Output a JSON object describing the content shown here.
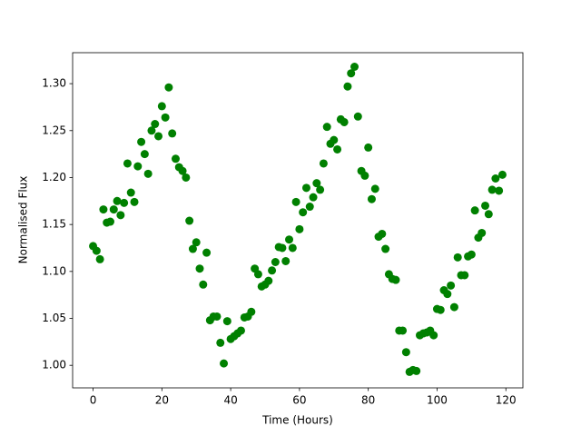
{
  "chart_data": {
    "type": "scatter",
    "x_label": "Time (Hours)",
    "y_label": "Normalised Flux",
    "color": "#008000",
    "x": [
      0,
      1,
      2,
      3,
      4,
      5,
      6,
      7,
      8,
      9,
      10,
      11,
      12,
      13,
      14,
      15,
      16,
      17,
      18,
      19,
      20,
      21,
      22,
      23,
      24,
      25,
      26,
      27,
      28,
      29,
      30,
      31,
      32,
      33,
      34,
      35,
      36,
      37,
      38,
      39,
      40,
      41,
      42,
      43,
      44,
      45,
      46,
      47,
      48,
      49,
      50,
      51,
      52,
      53,
      54,
      55,
      56,
      57,
      58,
      59,
      60,
      61,
      62,
      63,
      64,
      65,
      66,
      67,
      68,
      69,
      70,
      71,
      72,
      73,
      74,
      75,
      76,
      77,
      78,
      79,
      80,
      81,
      82,
      83,
      84,
      85,
      86,
      87,
      88,
      89,
      90,
      91,
      92,
      93,
      94,
      95,
      96,
      97,
      98,
      99,
      100,
      101,
      102,
      103,
      104,
      105,
      106,
      107,
      108,
      109,
      110,
      111,
      112,
      113,
      114,
      115,
      116,
      117,
      118,
      119
    ],
    "values": [
      1.127,
      1.122,
      1.113,
      1.166,
      1.152,
      1.153,
      1.166,
      1.175,
      1.16,
      1.173,
      1.215,
      1.184,
      1.174,
      1.212,
      1.238,
      1.225,
      1.204,
      1.25,
      1.257,
      1.244,
      1.276,
      1.264,
      1.296,
      1.247,
      1.22,
      1.211,
      1.207,
      1.2,
      1.154,
      1.124,
      1.131,
      1.103,
      1.086,
      1.12,
      1.048,
      1.052,
      1.052,
      1.024,
      1.002,
      1.047,
      1.028,
      1.031,
      1.034,
      1.037,
      1.051,
      1.052,
      1.057,
      1.103,
      1.097,
      1.084,
      1.086,
      1.09,
      1.101,
      1.11,
      1.126,
      1.125,
      1.111,
      1.134,
      1.125,
      1.174,
      1.145,
      1.163,
      1.189,
      1.169,
      1.179,
      1.194,
      1.187,
      1.215,
      1.254,
      1.236,
      1.24,
      1.23,
      1.262,
      1.259,
      1.297,
      1.311,
      1.318,
      1.265,
      1.207,
      1.202,
      1.232,
      1.177,
      1.188,
      1.137,
      1.14,
      1.124,
      1.097,
      1.092,
      1.091,
      1.037,
      1.037,
      1.014,
      0.993,
      0.995,
      0.994,
      1.032,
      1.034,
      1.035,
      1.037,
      1.032,
      1.06,
      1.059,
      1.08,
      1.076,
      1.085,
      1.062,
      1.115,
      1.096,
      1.096,
      1.116,
      1.118,
      1.165,
      1.136,
      1.141,
      1.17,
      1.161,
      1.187,
      1.199,
      1.186,
      1.203
    ],
    "xlim": [
      -5.95,
      124.95
    ],
    "xticks": [
      0,
      20,
      40,
      60,
      80,
      100,
      120
    ],
    "ylim": [
      0.976,
      1.333
    ],
    "yticks": [
      {
        "value": 1.0,
        "label": "1.00"
      },
      {
        "value": 1.05,
        "label": "1.05"
      },
      {
        "value": 1.1,
        "label": "1.10"
      },
      {
        "value": 1.15,
        "label": "1.15"
      },
      {
        "value": 1.2,
        "label": "1.20"
      },
      {
        "value": 1.25,
        "label": "1.25"
      },
      {
        "value": 1.3,
        "label": "1.30"
      }
    ]
  }
}
